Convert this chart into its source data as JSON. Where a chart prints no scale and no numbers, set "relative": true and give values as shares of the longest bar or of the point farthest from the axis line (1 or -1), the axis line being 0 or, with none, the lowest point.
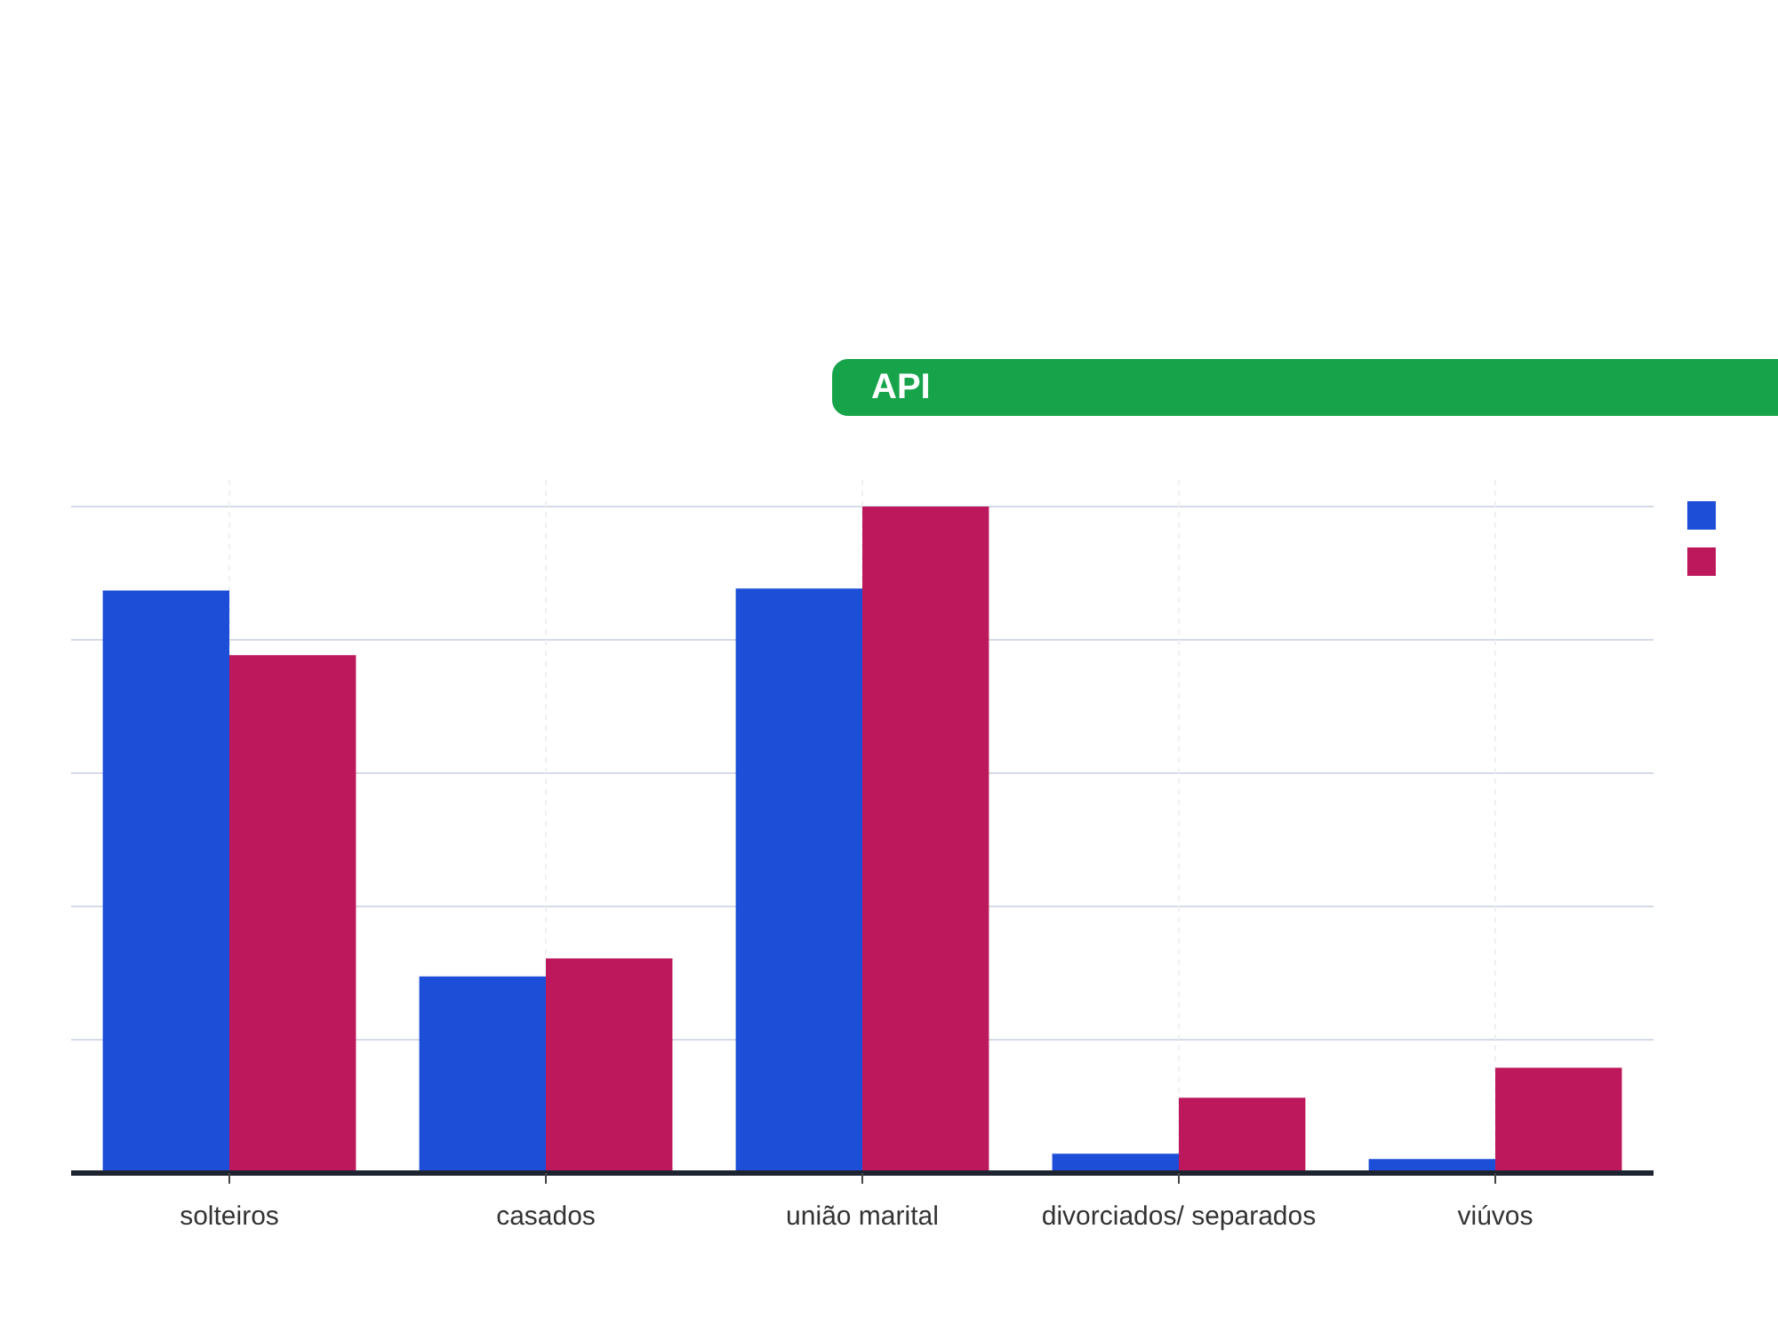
{
  "chart_data": {
    "type": "bar",
    "title": "API",
    "relative": true,
    "grid": true,
    "categories": [
      "solteiros",
      "casados",
      "união marital",
      "divorciados/ separados",
      "viúvos"
    ],
    "series": [
      {
        "color": "#1d4ed8",
        "values": [
          0.874,
          0.295,
          0.877,
          0.029,
          0.021
        ]
      },
      {
        "color": "#be185d",
        "values": [
          0.777,
          0.322,
          1,
          0.113,
          0.158
        ]
      }
    ]
  }
}
